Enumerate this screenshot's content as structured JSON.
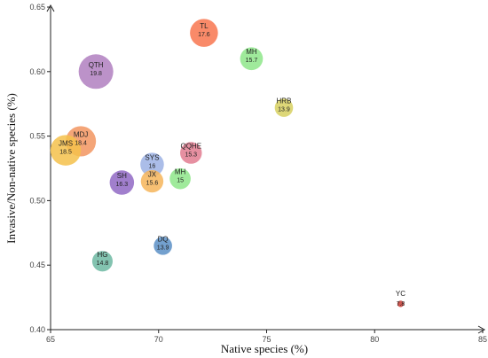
{
  "chart_data": {
    "type": "scatter",
    "title": "",
    "xlabel": "Native species (%)",
    "ylabel": "Invasive/Non-native species (%)",
    "xlim": [
      65,
      85
    ],
    "ylim": [
      0.4,
      0.65
    ],
    "x_ticks": [
      "65",
      "70",
      "75",
      "80",
      "85"
    ],
    "y_ticks": [
      "0.40",
      "0.45",
      "0.50",
      "0.55",
      "0.60",
      "0.65"
    ],
    "grid": false,
    "legend": "none",
    "size_encodes": "value",
    "points": [
      {
        "name": "TL",
        "value": "17.6",
        "x": 72.1,
        "y": 0.63,
        "color": "#F8764F"
      },
      {
        "name": "MH",
        "value": "15.7",
        "x": 74.3,
        "y": 0.61,
        "color": "#8EE68A"
      },
      {
        "name": "QTH",
        "value": "19.8",
        "x": 67.1,
        "y": 0.6,
        "color": "#B07FC0"
      },
      {
        "name": "HRB",
        "value": "13.9",
        "x": 75.8,
        "y": 0.572,
        "color": "#D7D060"
      },
      {
        "name": "MDJ",
        "value": "18.4",
        "x": 66.4,
        "y": 0.546,
        "color": "#F29560"
      },
      {
        "name": "JMS",
        "value": "18.5",
        "x": 65.7,
        "y": 0.539,
        "color": "#F5C14B"
      },
      {
        "name": "QQHE",
        "value": "15.3",
        "x": 71.5,
        "y": 0.537,
        "color": "#E27D91"
      },
      {
        "name": "SYS",
        "value": "16",
        "x": 69.7,
        "y": 0.528,
        "color": "#9CB1E4"
      },
      {
        "name": "MH",
        "value": "15",
        "x": 71.0,
        "y": 0.517,
        "color": "#8EE68A"
      },
      {
        "name": "JX",
        "value": "15.6",
        "x": 69.7,
        "y": 0.515,
        "color": "#F6B55A"
      },
      {
        "name": "SH",
        "value": "16.3",
        "x": 68.3,
        "y": 0.514,
        "color": "#9068C4"
      },
      {
        "name": "DQ",
        "value": "13.9",
        "x": 70.2,
        "y": 0.465,
        "color": "#5A8FC6"
      },
      {
        "name": "HG",
        "value": "14.8",
        "x": 67.4,
        "y": 0.453,
        "color": "#6DB9A2"
      },
      {
        "name": "YC",
        "value": "7.8",
        "x": 81.2,
        "y": 0.42,
        "color": "#C73A32"
      }
    ]
  }
}
